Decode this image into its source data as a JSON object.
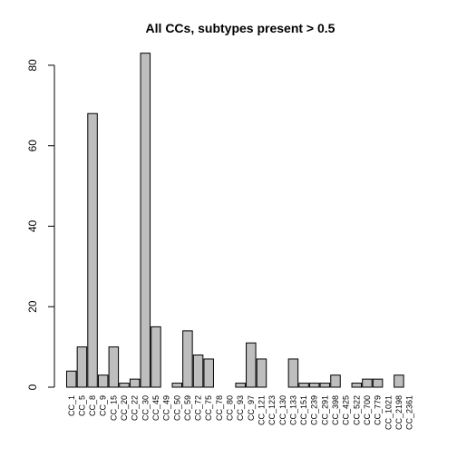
{
  "chart_data": {
    "type": "bar",
    "title": "All CCs, subtypes present > 0.5",
    "xlabel": "",
    "ylabel": "",
    "ylim": [
      0,
      85
    ],
    "yticks": [
      0,
      20,
      40,
      60,
      80
    ],
    "categories": [
      "CC_1",
      "CC_5",
      "CC_8",
      "CC_9",
      "CC_15",
      "CC_20",
      "CC_22",
      "CC_30",
      "CC_45",
      "CC_49",
      "CC_50",
      "CC_59",
      "CC_72",
      "CC_75",
      "CC_78",
      "CC_80",
      "CC_93",
      "CC_97",
      "CC_121",
      "CC_123",
      "CC_130",
      "CC_133",
      "CC_151",
      "CC_239",
      "CC_291",
      "CC_398",
      "CC_425",
      "CC_522",
      "CC_700",
      "CC_779",
      "CC_1021",
      "CC_2198",
      "CC_2361"
    ],
    "values": [
      4,
      10,
      68,
      3,
      10,
      1,
      2,
      83,
      15,
      0,
      1,
      14,
      8,
      7,
      0,
      0,
      1,
      11,
      7,
      0,
      0,
      7,
      1,
      1,
      1,
      3,
      0,
      1,
      2,
      2,
      0,
      3,
      0
    ],
    "bar_color": "#bebebe",
    "grid": false
  }
}
